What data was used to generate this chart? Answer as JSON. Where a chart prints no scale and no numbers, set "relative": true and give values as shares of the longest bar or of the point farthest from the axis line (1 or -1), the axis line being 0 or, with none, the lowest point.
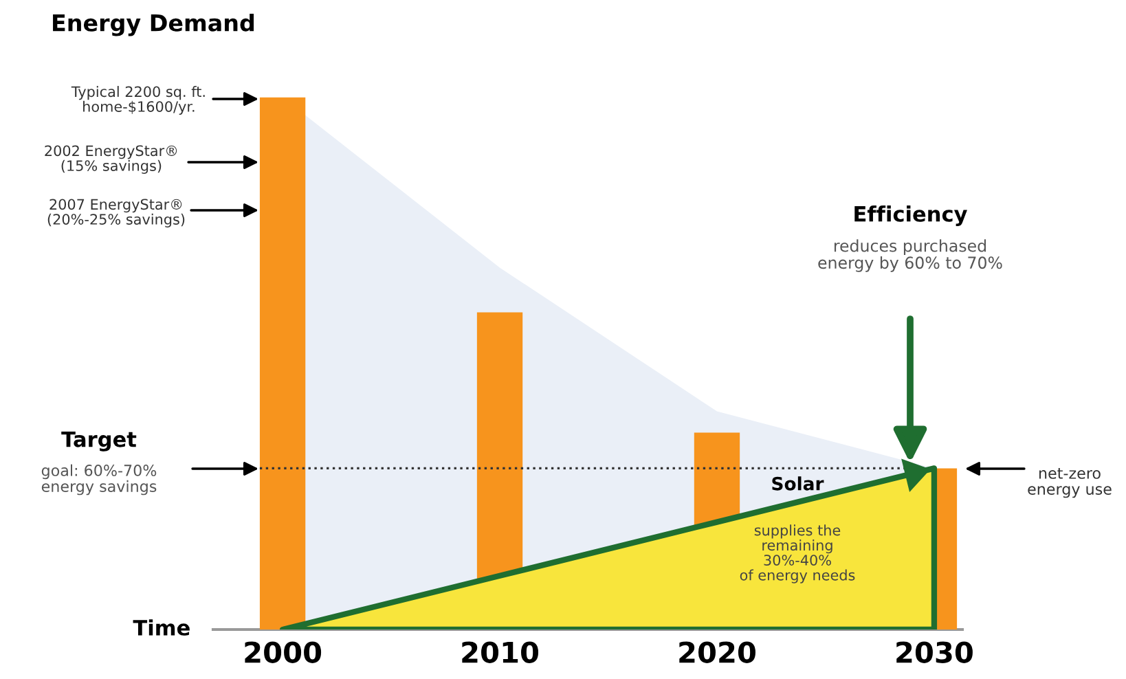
{
  "chart_data": {
    "type": "bar",
    "title": "Energy Demand",
    "xlabel": "Time",
    "relative": true,
    "categories": [
      "2000",
      "2010",
      "2020",
      "2030"
    ],
    "series": [
      {
        "type": "area",
        "color": "#eaeff7",
        "values": [
          1,
          0.68,
          0.41,
          0.303
        ]
      },
      {
        "type": "area",
        "color": "#f8e53c",
        "values": [
          0,
          0.101,
          0.202,
          0.303
        ]
      },
      {
        "type": "bar",
        "color": "#f7941d",
        "values": [
          1,
          0.596,
          0.37,
          0.303
        ]
      }
    ],
    "ref_lines": [
      {
        "axis": "y",
        "value": 0.303,
        "line_style": "dotted",
        "color": "#333333"
      }
    ],
    "annotations": [
      "Typical 2200 sq. ft.\nhome-$1600/yr.",
      "2002 EnergyStar®\n(15% savings)",
      "2007 EnergyStar®\n(20%-25% savings)",
      "Target",
      "goal: 60%-70%\nenergy savings",
      "Efficiency",
      "reduces purchased\nenergy by 60% to 70%",
      "net-zero\nenergy use",
      "Solar",
      "supplies the\nremaining\n30%-40%\nof energy needs"
    ],
    "grid": false,
    "legend": false
  }
}
